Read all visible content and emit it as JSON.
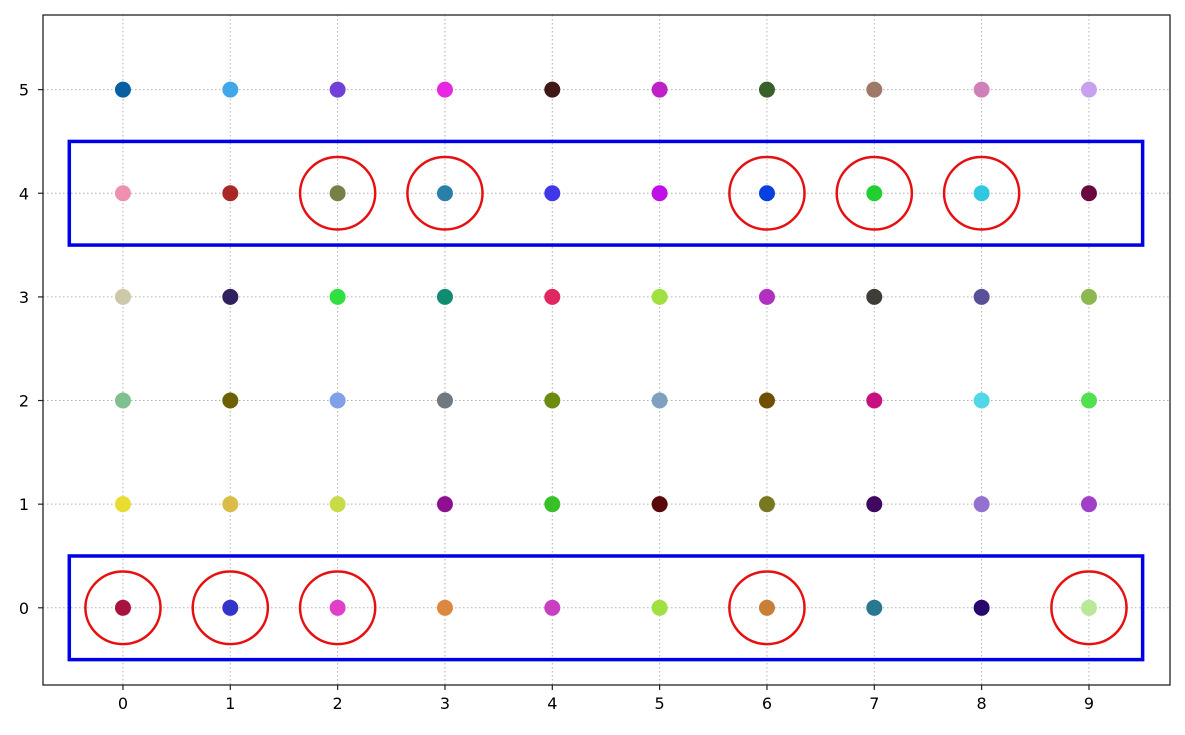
{
  "chart_data": {
    "type": "scatter",
    "title": "",
    "xlabel": "",
    "ylabel": "",
    "xlim": [
      -0.745,
      9.755
    ],
    "ylim": [
      -0.745,
      5.72
    ],
    "xticks": [
      0,
      1,
      2,
      3,
      4,
      5,
      6,
      7,
      8,
      9
    ],
    "yticks": [
      0,
      1,
      2,
      3,
      4,
      5
    ],
    "grid": {
      "on": true,
      "style": "dotted",
      "color": "#b0b0b0"
    },
    "marker_radius_px": 8,
    "points": [
      {
        "x": 0,
        "y": 0,
        "color": "#a8123e"
      },
      {
        "x": 1,
        "y": 0,
        "color": "#3434c8"
      },
      {
        "x": 2,
        "y": 0,
        "color": "#e040c8"
      },
      {
        "x": 3,
        "y": 0,
        "color": "#dc8840"
      },
      {
        "x": 4,
        "y": 0,
        "color": "#c840c0"
      },
      {
        "x": 5,
        "y": 0,
        "color": "#a0e040"
      },
      {
        "x": 6,
        "y": 0,
        "color": "#c88038"
      },
      {
        "x": 7,
        "y": 0,
        "color": "#287890"
      },
      {
        "x": 8,
        "y": 0,
        "color": "#28086c"
      },
      {
        "x": 9,
        "y": 0,
        "color": "#b8e898"
      },
      {
        "x": 0,
        "y": 1,
        "color": "#e8dc30"
      },
      {
        "x": 1,
        "y": 1,
        "color": "#dcbc48"
      },
      {
        "x": 2,
        "y": 1,
        "color": "#c8dc48"
      },
      {
        "x": 3,
        "y": 1,
        "color": "#8c1090"
      },
      {
        "x": 4,
        "y": 1,
        "color": "#38c028"
      },
      {
        "x": 5,
        "y": 1,
        "color": "#580808"
      },
      {
        "x": 6,
        "y": 1,
        "color": "#787820"
      },
      {
        "x": 7,
        "y": 1,
        "color": "#400860"
      },
      {
        "x": 8,
        "y": 1,
        "color": "#9470d0"
      },
      {
        "x": 9,
        "y": 1,
        "color": "#a040c8"
      },
      {
        "x": 0,
        "y": 2,
        "color": "#80c090"
      },
      {
        "x": 1,
        "y": 2,
        "color": "#6c6000"
      },
      {
        "x": 2,
        "y": 2,
        "color": "#80a0e8"
      },
      {
        "x": 3,
        "y": 2,
        "color": "#707880"
      },
      {
        "x": 4,
        "y": 2,
        "color": "#6c8c10"
      },
      {
        "x": 5,
        "y": 2,
        "color": "#80a0c0"
      },
      {
        "x": 6,
        "y": 2,
        "color": "#705000"
      },
      {
        "x": 7,
        "y": 2,
        "color": "#c81080"
      },
      {
        "x": 8,
        "y": 2,
        "color": "#50d8e8"
      },
      {
        "x": 9,
        "y": 2,
        "color": "#50e050"
      },
      {
        "x": 0,
        "y": 3,
        "color": "#ccc8a8"
      },
      {
        "x": 1,
        "y": 3,
        "color": "#302060"
      },
      {
        "x": 2,
        "y": 3,
        "color": "#30e040"
      },
      {
        "x": 3,
        "y": 3,
        "color": "#108c70"
      },
      {
        "x": 4,
        "y": 3,
        "color": "#e02860"
      },
      {
        "x": 5,
        "y": 3,
        "color": "#a0e040"
      },
      {
        "x": 6,
        "y": 3,
        "color": "#b030c0"
      },
      {
        "x": 7,
        "y": 3,
        "color": "#403c38"
      },
      {
        "x": 8,
        "y": 3,
        "color": "#585098"
      },
      {
        "x": 9,
        "y": 3,
        "color": "#8cb850"
      },
      {
        "x": 0,
        "y": 4,
        "color": "#f090b0"
      },
      {
        "x": 1,
        "y": 4,
        "color": "#a82828"
      },
      {
        "x": 2,
        "y": 4,
        "color": "#788048"
      },
      {
        "x": 3,
        "y": 4,
        "color": "#2880a8"
      },
      {
        "x": 4,
        "y": 4,
        "color": "#4038e8"
      },
      {
        "x": 5,
        "y": 4,
        "color": "#c010e8"
      },
      {
        "x": 6,
        "y": 4,
        "color": "#0840e0"
      },
      {
        "x": 7,
        "y": 4,
        "color": "#20d030"
      },
      {
        "x": 8,
        "y": 4,
        "color": "#30c8e0"
      },
      {
        "x": 9,
        "y": 4,
        "color": "#6c0840"
      },
      {
        "x": 0,
        "y": 5,
        "color": "#0860a0"
      },
      {
        "x": 1,
        "y": 5,
        "color": "#40a8e8"
      },
      {
        "x": 2,
        "y": 5,
        "color": "#7040d8"
      },
      {
        "x": 3,
        "y": 5,
        "color": "#e828e0"
      },
      {
        "x": 4,
        "y": 5,
        "color": "#401818"
      },
      {
        "x": 5,
        "y": 5,
        "color": "#c020c8"
      },
      {
        "x": 6,
        "y": 5,
        "color": "#386028"
      },
      {
        "x": 7,
        "y": 5,
        "color": "#a07868"
      },
      {
        "x": 8,
        "y": 5,
        "color": "#d080b8"
      },
      {
        "x": 9,
        "y": 5,
        "color": "#c8a0f0"
      }
    ],
    "annotations": {
      "rectangles": [
        {
          "x0": -0.5,
          "y0": 3.5,
          "x1": 9.5,
          "y1": 4.5,
          "color": "#0000e6",
          "label": "row-4-highlight"
        },
        {
          "x0": -0.5,
          "y0": -0.5,
          "x1": 9.5,
          "y1": 0.5,
          "color": "#0000e6",
          "label": "row-0-highlight"
        }
      ],
      "circles": [
        {
          "x": 2,
          "y": 4
        },
        {
          "x": 3,
          "y": 4
        },
        {
          "x": 6,
          "y": 4
        },
        {
          "x": 7,
          "y": 4
        },
        {
          "x": 8,
          "y": 4
        },
        {
          "x": 0,
          "y": 0
        },
        {
          "x": 1,
          "y": 0
        },
        {
          "x": 2,
          "y": 0
        },
        {
          "x": 6,
          "y": 0
        },
        {
          "x": 9,
          "y": 0
        }
      ],
      "circle_color": "#e61010",
      "circle_radius_data": 0.35
    }
  }
}
